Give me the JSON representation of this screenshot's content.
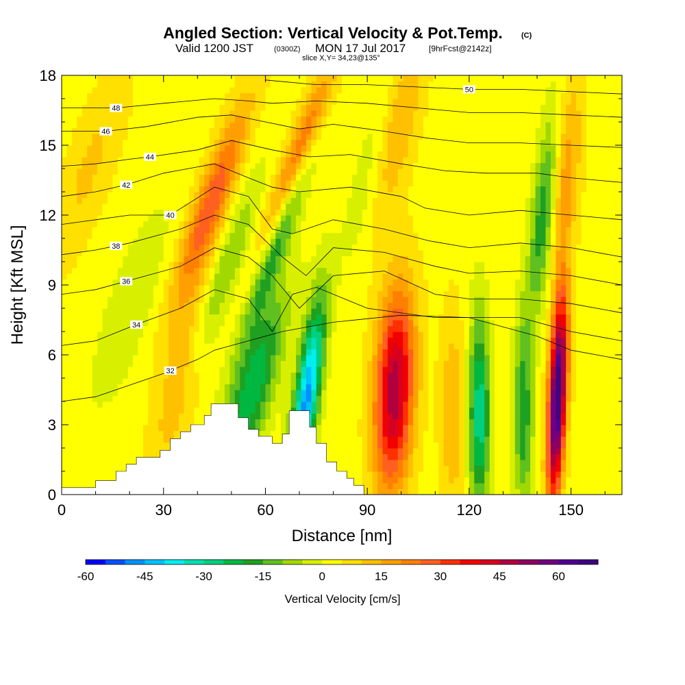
{
  "title": {
    "main": "Angled Section: Vertical Velocity & Pot.Temp.",
    "main_unit": "(C)",
    "valid_a": "Valid 1200 JST",
    "valid_b": "(0300Z)",
    "valid_c": "MON 17 Jul 2017",
    "valid_d": "[9hrFcst@2142z]",
    "slice": "slice X,Y= 34,23@135°"
  },
  "chart_data": {
    "type": "heatmap",
    "xlabel": "Distance [nm]",
    "ylabel": "Height [Kft MSL]",
    "xlim": [
      0,
      165
    ],
    "ylim": [
      0,
      18
    ],
    "x_ticks": [
      0,
      30,
      60,
      90,
      120,
      150
    ],
    "y_ticks": [
      0,
      3,
      6,
      9,
      12,
      15,
      18
    ],
    "colorbar": {
      "label": "Vertical Velocity [cm/s]",
      "min": -60,
      "max": 70,
      "step": 5,
      "tick_values": [
        -60,
        -45,
        -30,
        -15,
        0,
        15,
        30,
        45,
        60
      ],
      "colors": [
        "#0000ff",
        "#0050ff",
        "#0090ff",
        "#00c0ff",
        "#00eeee",
        "#00e0b0",
        "#00d080",
        "#00b840",
        "#20a020",
        "#60c020",
        "#a0d800",
        "#d8f000",
        "#ffff00",
        "#ffe000",
        "#ffc000",
        "#ffa000",
        "#ff8000",
        "#ff6020",
        "#ff3000",
        "#f00000",
        "#d80020",
        "#b00040",
        "#8c0060",
        "#700080",
        "#500090",
        "#400080"
      ]
    },
    "velocity_field": {
      "base": 3,
      "features": [
        {
          "x": 48,
          "y": 9.5,
          "tilt": 0.38,
          "w": 3.0,
          "v": -14
        },
        {
          "x": 44,
          "y": 12.5,
          "tilt": 0.38,
          "w": 3.5,
          "v": 26
        },
        {
          "x": 56,
          "y": 4.5,
          "tilt": 0.3,
          "w": 4.5,
          "v": -28
        },
        {
          "x": 65,
          "y": 11.5,
          "tilt": 0.4,
          "w": 2.5,
          "v": -26
        },
        {
          "x": 70,
          "y": 14.5,
          "tilt": 0.4,
          "w": 3.0,
          "v": 26
        },
        {
          "x": 72,
          "y": 4.0,
          "tilt": 0.15,
          "w": 2.5,
          "v": -50
        },
        {
          "x": 98,
          "y": 4.5,
          "tilt": 0.05,
          "w": 4.0,
          "v": 46
        },
        {
          "x": 92,
          "y": 14.0,
          "tilt": 0.25,
          "w": 4.0,
          "v": -10
        },
        {
          "x": 98,
          "y": 15.5,
          "tilt": 0.25,
          "w": 4.0,
          "v": 16
        },
        {
          "x": 123,
          "y": 3.5,
          "tilt": 0.0,
          "w": 2.2,
          "v": -32
        },
        {
          "x": 115,
          "y": 3.5,
          "tilt": 0.0,
          "w": 2.5,
          "v": 12
        },
        {
          "x": 136,
          "y": 3.5,
          "tilt": 0.0,
          "w": 2.0,
          "v": -22
        },
        {
          "x": 146,
          "y": 4.2,
          "tilt": 0.05,
          "w": 1.8,
          "v": 68
        },
        {
          "x": 142,
          "y": 12.0,
          "tilt": 0.1,
          "w": 2.5,
          "v": -24
        },
        {
          "x": 148,
          "y": 13.5,
          "tilt": 0.1,
          "w": 3.0,
          "v": 16
        },
        {
          "x": 35,
          "y": 5.0,
          "tilt": 0.25,
          "w": 4.0,
          "v": 12
        },
        {
          "x": 20,
          "y": 8.0,
          "tilt": 0.35,
          "w": 5.0,
          "v": -8
        },
        {
          "x": 8,
          "y": 14.0,
          "tilt": 0.35,
          "w": 5.0,
          "v": 8
        }
      ]
    },
    "theta_contours": [
      {
        "value": 32,
        "label": "32",
        "label_at": 32,
        "points": [
          [
            0,
            4.0
          ],
          [
            10,
            4.2
          ],
          [
            20,
            4.7
          ],
          [
            30,
            5.2
          ],
          [
            40,
            5.8
          ],
          [
            45,
            6.2
          ],
          [
            55,
            6.6
          ],
          [
            65,
            7.0
          ],
          [
            80,
            7.4
          ],
          [
            100,
            7.7
          ],
          [
            120,
            7.6
          ],
          [
            130,
            7.2
          ],
          [
            140,
            6.8
          ],
          [
            150,
            6.2
          ],
          [
            165,
            5.8
          ]
        ]
      },
      {
        "value": 34,
        "label": "34",
        "label_at": 22,
        "points": [
          [
            0,
            6.4
          ],
          [
            10,
            6.6
          ],
          [
            22,
            7.3
          ],
          [
            35,
            8.0
          ],
          [
            45,
            8.8
          ],
          [
            55,
            8.4
          ],
          [
            62,
            7.0
          ],
          [
            68,
            8.6
          ],
          [
            75,
            8.9
          ],
          [
            90,
            8.0
          ],
          [
            110,
            7.6
          ],
          [
            120,
            7.6
          ],
          [
            135,
            7.6
          ],
          [
            150,
            7.0
          ],
          [
            165,
            6.6
          ]
        ]
      },
      {
        "value": 36,
        "label": "36",
        "label_at": 19,
        "points": [
          [
            0,
            8.6
          ],
          [
            10,
            8.8
          ],
          [
            20,
            9.2
          ],
          [
            35,
            9.8
          ],
          [
            45,
            10.6
          ],
          [
            55,
            10.2
          ],
          [
            62,
            9.4
          ],
          [
            70,
            8.0
          ],
          [
            80,
            9.4
          ],
          [
            95,
            9.6
          ],
          [
            110,
            8.6
          ],
          [
            120,
            8.4
          ],
          [
            135,
            8.4
          ],
          [
            150,
            8.2
          ],
          [
            165,
            7.8
          ]
        ]
      },
      {
        "value": 38,
        "label": "38",
        "label_at": 16,
        "points": [
          [
            0,
            10.3
          ],
          [
            10,
            10.5
          ],
          [
            20,
            10.8
          ],
          [
            35,
            11.4
          ],
          [
            45,
            12.0
          ],
          [
            55,
            11.6
          ],
          [
            65,
            10.2
          ],
          [
            72,
            9.4
          ],
          [
            80,
            10.6
          ],
          [
            95,
            10.4
          ],
          [
            110,
            9.8
          ],
          [
            120,
            9.5
          ],
          [
            135,
            9.6
          ],
          [
            150,
            9.4
          ],
          [
            165,
            9.0
          ]
        ]
      },
      {
        "value": 40,
        "label": "40",
        "label_at": 32,
        "points": [
          [
            0,
            11.6
          ],
          [
            10,
            11.8
          ],
          [
            20,
            12.0
          ],
          [
            32,
            12.0
          ],
          [
            45,
            13.2
          ],
          [
            55,
            12.8
          ],
          [
            62,
            11.4
          ],
          [
            68,
            11.2
          ],
          [
            80,
            11.8
          ],
          [
            95,
            11.4
          ],
          [
            108,
            10.9
          ],
          [
            120,
            10.6
          ],
          [
            135,
            10.8
          ],
          [
            150,
            10.6
          ],
          [
            165,
            10.2
          ]
        ]
      },
      {
        "value": 42,
        "label": "42",
        "label_at": 19,
        "points": [
          [
            0,
            12.8
          ],
          [
            10,
            13.0
          ],
          [
            19,
            13.3
          ],
          [
            30,
            13.8
          ],
          [
            45,
            14.2
          ],
          [
            55,
            13.6
          ],
          [
            62,
            13.2
          ],
          [
            70,
            13.0
          ],
          [
            85,
            13.2
          ],
          [
            100,
            12.8
          ],
          [
            107,
            12.3
          ],
          [
            120,
            12.0
          ],
          [
            135,
            12.2
          ],
          [
            150,
            12.0
          ],
          [
            165,
            11.8
          ]
        ]
      },
      {
        "value": 44,
        "label": "44",
        "label_at": 26,
        "points": [
          [
            0,
            14.1
          ],
          [
            10,
            14.2
          ],
          [
            20,
            14.4
          ],
          [
            26,
            14.5
          ],
          [
            40,
            14.8
          ],
          [
            50,
            15.2
          ],
          [
            62,
            14.8
          ],
          [
            73,
            14.5
          ],
          [
            85,
            14.6
          ],
          [
            100,
            14.2
          ],
          [
            113,
            13.9
          ],
          [
            125,
            13.8
          ],
          [
            140,
            13.8
          ],
          [
            150,
            13.6
          ],
          [
            165,
            13.4
          ]
        ]
      },
      {
        "value": 46,
        "label": "46",
        "label_at": 13,
        "points": [
          [
            0,
            15.6
          ],
          [
            13,
            15.6
          ],
          [
            25,
            15.8
          ],
          [
            40,
            16.2
          ],
          [
            50,
            16.3
          ],
          [
            60,
            16.0
          ],
          [
            70,
            15.7
          ],
          [
            80,
            15.9
          ],
          [
            95,
            15.6
          ],
          [
            108,
            15.3
          ],
          [
            120,
            15.1
          ],
          [
            135,
            15.1
          ],
          [
            150,
            15.0
          ],
          [
            165,
            14.9
          ]
        ]
      },
      {
        "value": 48,
        "label": "48",
        "label_at": 16,
        "points": [
          [
            0,
            16.6
          ],
          [
            16,
            16.6
          ],
          [
            30,
            16.8
          ],
          [
            45,
            17.0
          ],
          [
            55,
            16.9
          ],
          [
            62,
            16.8
          ],
          [
            75,
            16.9
          ],
          [
            90,
            16.8
          ],
          [
            105,
            16.6
          ],
          [
            120,
            16.4
          ],
          [
            135,
            16.4
          ],
          [
            150,
            16.3
          ],
          [
            165,
            16.2
          ]
        ]
      },
      {
        "value": 50,
        "label": "50",
        "label_at": 120,
        "points": [
          [
            60,
            17.8
          ],
          [
            75,
            17.6
          ],
          [
            90,
            17.6
          ],
          [
            105,
            17.5
          ],
          [
            120,
            17.4
          ],
          [
            135,
            17.4
          ],
          [
            150,
            17.3
          ],
          [
            165,
            17.2
          ]
        ]
      }
    ],
    "terrain": [
      [
        0,
        0.3
      ],
      [
        10,
        0.3
      ],
      [
        10,
        0.6
      ],
      [
        16,
        0.6
      ],
      [
        16,
        1.0
      ],
      [
        19,
        1.0
      ],
      [
        19,
        1.3
      ],
      [
        22,
        1.3
      ],
      [
        22,
        1.6
      ],
      [
        29,
        1.6
      ],
      [
        29,
        1.9
      ],
      [
        32,
        1.9
      ],
      [
        32,
        2.4
      ],
      [
        35,
        2.4
      ],
      [
        35,
        2.7
      ],
      [
        38,
        2.7
      ],
      [
        38,
        3.0
      ],
      [
        42,
        3.0
      ],
      [
        42,
        3.4
      ],
      [
        44,
        3.4
      ],
      [
        44,
        3.9
      ],
      [
        52,
        3.9
      ],
      [
        52,
        3.3
      ],
      [
        55,
        3.3
      ],
      [
        55,
        2.8
      ],
      [
        58,
        2.8
      ],
      [
        58,
        2.5
      ],
      [
        62,
        2.5
      ],
      [
        62,
        2.2
      ],
      [
        65,
        2.2
      ],
      [
        65,
        2.6
      ],
      [
        67,
        2.6
      ],
      [
        67,
        3.6
      ],
      [
        73,
        3.6
      ],
      [
        73,
        2.9
      ],
      [
        75,
        2.9
      ],
      [
        75,
        2.2
      ],
      [
        78,
        2.2
      ],
      [
        78,
        1.4
      ],
      [
        81,
        1.4
      ],
      [
        81,
        1.0
      ],
      [
        84,
        1.0
      ],
      [
        84,
        0.7
      ],
      [
        86,
        0.7
      ],
      [
        86,
        0.4
      ],
      [
        89,
        0.4
      ],
      [
        89,
        0
      ]
    ]
  }
}
